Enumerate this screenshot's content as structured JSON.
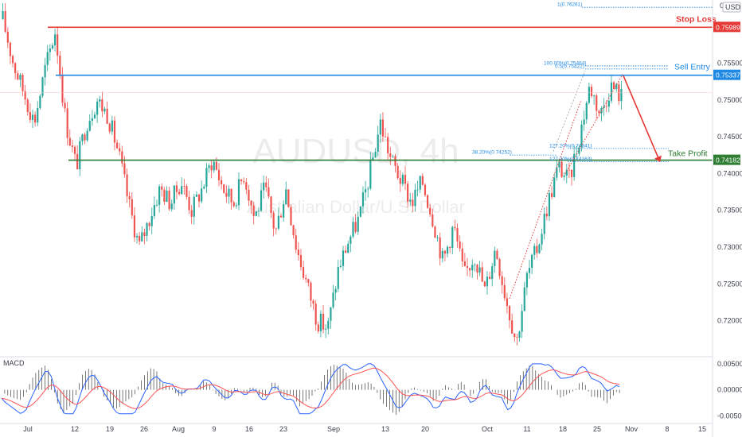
{
  "chart_data": {
    "type": "candlestick",
    "watermark": {
      "symbol": "AUDUSD",
      "interval": "4h",
      "name": "Australian Dollar/U.S. Dollar"
    },
    "currency_label": "USD",
    "y_top_label": "0.",
    "price_range": [
      0.7152,
      0.7636
    ],
    "y_ticks": [
      {
        "value": 0.755,
        "label": "0.75500"
      },
      {
        "value": 0.75,
        "label": "0.75000"
      },
      {
        "value": 0.745,
        "label": "0.74500"
      },
      {
        "value": 0.74,
        "label": "0.74000"
      },
      {
        "value": 0.735,
        "label": "0.73500"
      },
      {
        "value": 0.73,
        "label": "0.73000"
      },
      {
        "value": 0.725,
        "label": "0.72500"
      },
      {
        "value": 0.72,
        "label": "0.72000"
      }
    ],
    "x_ticks": [
      "Jul",
      "12",
      "19",
      "26",
      "Aug",
      "9",
      "16",
      "23",
      "Sep",
      "13",
      "20",
      "Oct",
      "11",
      "18",
      "25",
      "Nov",
      "8",
      "15"
    ],
    "levels": [
      {
        "name": "Stop Loss",
        "value": 0.75989,
        "label": "0.75989",
        "color": "#e53935"
      },
      {
        "name": "Sell Entry",
        "value": 0.75337,
        "label": "0.75337",
        "color": "#1e88e5"
      },
      {
        "name": "Take Profit",
        "value": 0.74182,
        "label": "0.74182",
        "color": "#2e7d32"
      }
    ],
    "fib_labels": [
      {
        "text": "1(0.76261)",
        "value": 0.76261
      },
      {
        "text": "100.00%(0.75464)",
        "value": 0.75464
      },
      {
        "text": "0.5(0.75422)",
        "value": 0.75422
      },
      {
        "text": "38.20%(0.74252)",
        "value": 0.74252
      },
      {
        "text": "127.20%(0.74341)",
        "value": 0.74341
      },
      {
        "text": "127.20%(0.74163)",
        "value": 0.74163
      }
    ],
    "price_path": [
      0.761,
      0.755,
      0.751,
      0.747,
      0.754,
      0.7595,
      0.747,
      0.741,
      0.747,
      0.75,
      0.748,
      0.743,
      0.736,
      0.73,
      0.734,
      0.738,
      0.736,
      0.739,
      0.735,
      0.738,
      0.742,
      0.738,
      0.736,
      0.74,
      0.734,
      0.738,
      0.732,
      0.738,
      0.73,
      0.725,
      0.72,
      0.719,
      0.727,
      0.731,
      0.734,
      0.74,
      0.747,
      0.742,
      0.739,
      0.736,
      0.739,
      0.734,
      0.728,
      0.733,
      0.726,
      0.729,
      0.724,
      0.73,
      0.723,
      0.717,
      0.726,
      0.73,
      0.736,
      0.741,
      0.739,
      0.745,
      0.752,
      0.748,
      0.752,
      0.7505
    ],
    "macd": {
      "label": "MACD",
      "ticks": [
        {
          "value": 0.005,
          "label": "0.00500"
        },
        {
          "value": 0.0,
          "label": "0.00000"
        },
        {
          "value": -0.005,
          "label": "-0.00500"
        }
      ],
      "range": [
        -0.006,
        0.0062
      ]
    },
    "colors": {
      "up": "#26a69a",
      "down": "#ef5350",
      "macd": "#2962ff",
      "signal": "#ff5252"
    }
  }
}
